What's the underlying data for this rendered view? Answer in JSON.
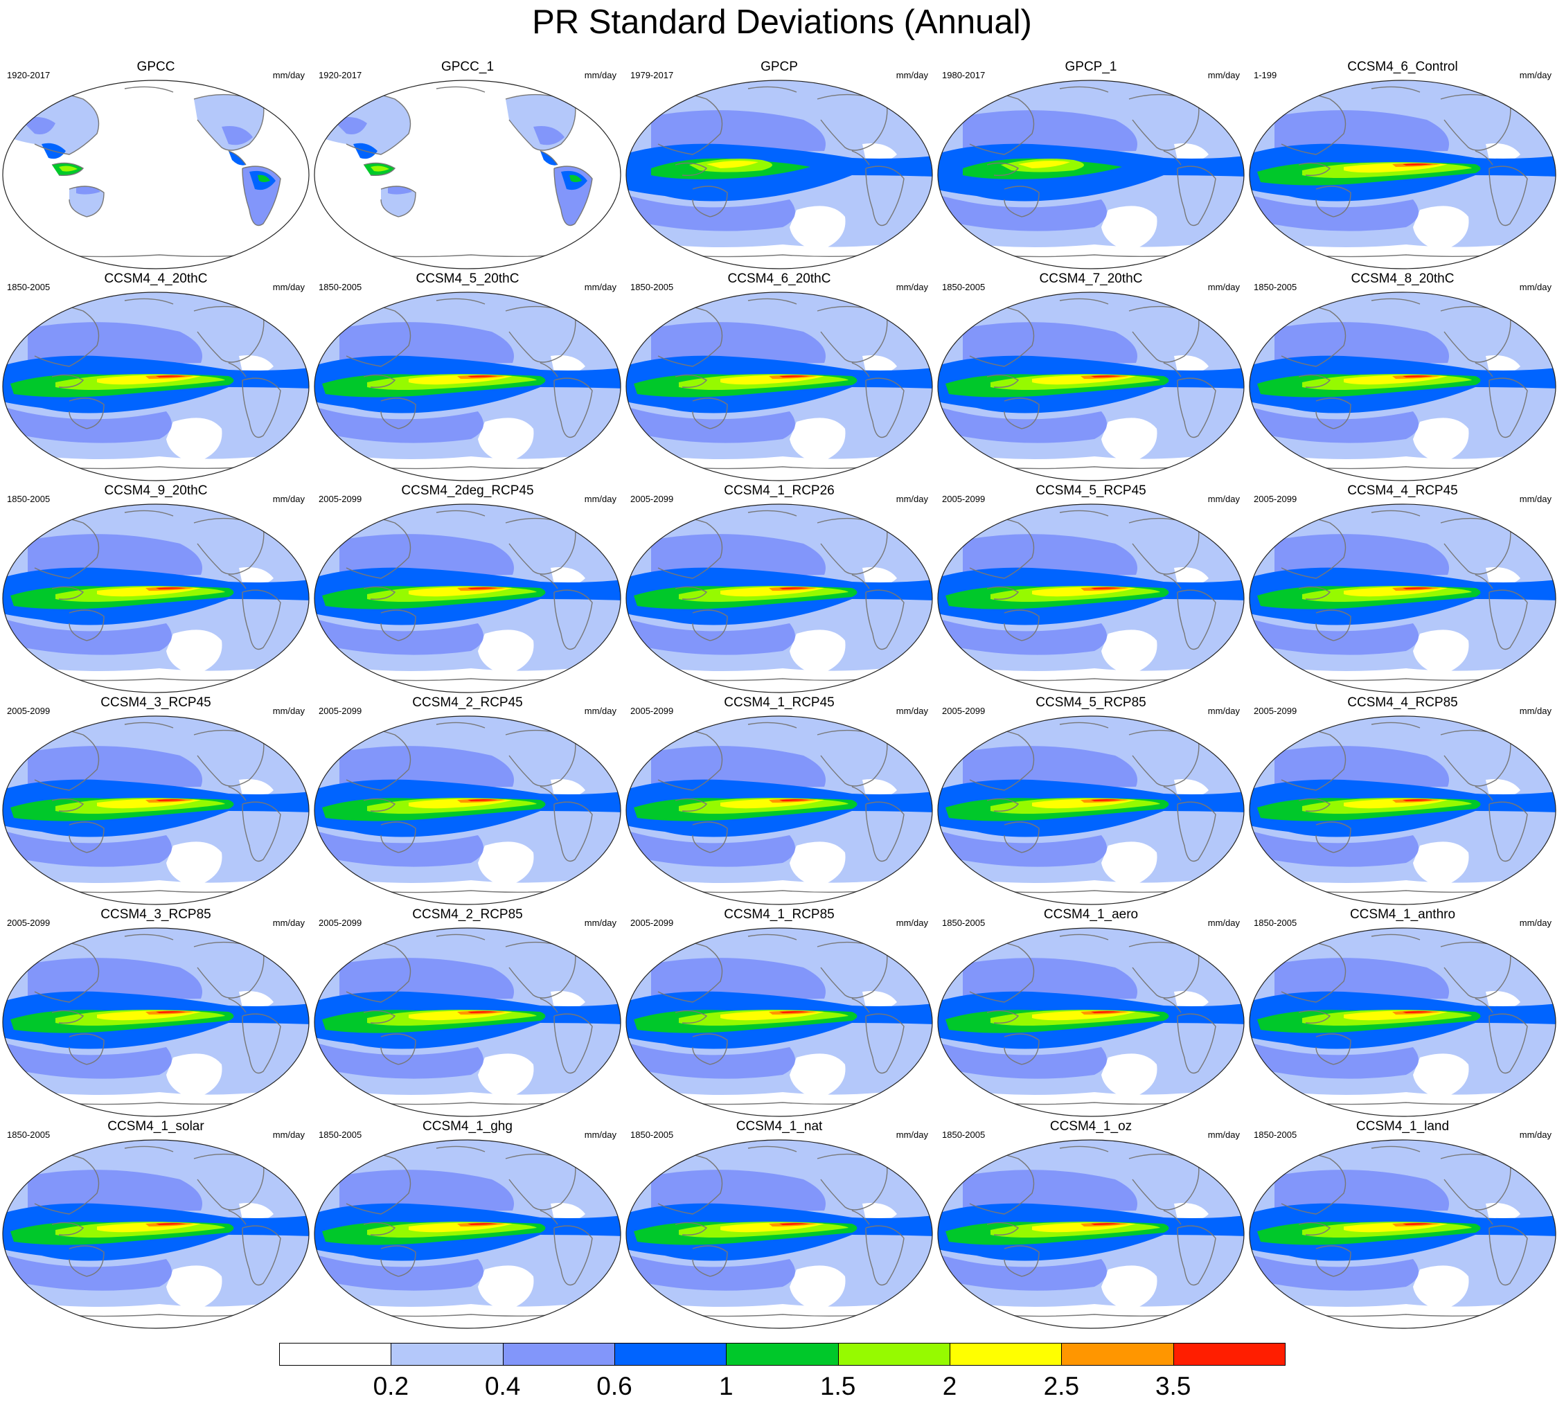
{
  "figure": {
    "title": "PR Standard Deviations (Annual)",
    "projection": "Robinson, Pacific-centered",
    "units": "mm/day"
  },
  "panels": [
    {
      "title": "GPCC",
      "years": "1920-2017",
      "units": "mm/day",
      "variant": "land-only"
    },
    {
      "title": "GPCC_1",
      "years": "1920-2017",
      "units": "mm/day",
      "variant": "land-only"
    },
    {
      "title": "GPCP",
      "years": "1979-2017",
      "units": "mm/day",
      "variant": "obs"
    },
    {
      "title": "GPCP_1",
      "years": "1980-2017",
      "units": "mm/day",
      "variant": "obs"
    },
    {
      "title": "CCSM4_6_Control",
      "years": "1-199",
      "units": "mm/day",
      "variant": "model"
    },
    {
      "title": "CCSM4_4_20thC",
      "years": "1850-2005",
      "units": "mm/day",
      "variant": "model"
    },
    {
      "title": "CCSM4_5_20thC",
      "years": "1850-2005",
      "units": "mm/day",
      "variant": "model"
    },
    {
      "title": "CCSM4_6_20thC",
      "years": "1850-2005",
      "units": "mm/day",
      "variant": "model"
    },
    {
      "title": "CCSM4_7_20thC",
      "years": "1850-2005",
      "units": "mm/day",
      "variant": "model"
    },
    {
      "title": "CCSM4_8_20thC",
      "years": "1850-2005",
      "units": "mm/day",
      "variant": "model"
    },
    {
      "title": "CCSM4_9_20thC",
      "years": "1850-2005",
      "units": "mm/day",
      "variant": "model"
    },
    {
      "title": "CCSM4_2deg_RCP45",
      "years": "2005-2099",
      "units": "mm/day",
      "variant": "model"
    },
    {
      "title": "CCSM4_1_RCP26",
      "years": "2005-2099",
      "units": "mm/day",
      "variant": "model"
    },
    {
      "title": "CCSM4_5_RCP45",
      "years": "2005-2099",
      "units": "mm/day",
      "variant": "model"
    },
    {
      "title": "CCSM4_4_RCP45",
      "years": "2005-2099",
      "units": "mm/day",
      "variant": "model"
    },
    {
      "title": "CCSM4_3_RCP45",
      "years": "2005-2099",
      "units": "mm/day",
      "variant": "model"
    },
    {
      "title": "CCSM4_2_RCP45",
      "years": "2005-2099",
      "units": "mm/day",
      "variant": "model"
    },
    {
      "title": "CCSM4_1_RCP45",
      "years": "2005-2099",
      "units": "mm/day",
      "variant": "model"
    },
    {
      "title": "CCSM4_5_RCP85",
      "years": "2005-2099",
      "units": "mm/day",
      "variant": "model"
    },
    {
      "title": "CCSM4_4_RCP85",
      "years": "2005-2099",
      "units": "mm/day",
      "variant": "model"
    },
    {
      "title": "CCSM4_3_RCP85",
      "years": "2005-2099",
      "units": "mm/day",
      "variant": "model"
    },
    {
      "title": "CCSM4_2_RCP85",
      "years": "2005-2099",
      "units": "mm/day",
      "variant": "model"
    },
    {
      "title": "CCSM4_1_RCP85",
      "years": "2005-2099",
      "units": "mm/day",
      "variant": "model"
    },
    {
      "title": "CCSM4_1_aero",
      "years": "1850-2005",
      "units": "mm/day",
      "variant": "model"
    },
    {
      "title": "CCSM4_1_anthro",
      "years": "1850-2005",
      "units": "mm/day",
      "variant": "model"
    },
    {
      "title": "CCSM4_1_solar",
      "years": "1850-2005",
      "units": "mm/day",
      "variant": "model"
    },
    {
      "title": "CCSM4_1_ghg",
      "years": "1850-2005",
      "units": "mm/day",
      "variant": "model"
    },
    {
      "title": "CCSM4_1_nat",
      "years": "1850-2005",
      "units": "mm/day",
      "variant": "model"
    },
    {
      "title": "CCSM4_1_oz",
      "years": "1850-2005",
      "units": "mm/day",
      "variant": "model"
    },
    {
      "title": "CCSM4_1_land",
      "years": "1850-2005",
      "units": "mm/day",
      "variant": "model"
    }
  ],
  "colorbar": {
    "labels": [
      "0.2",
      "0.4",
      "0.6",
      "1",
      "1.5",
      "2",
      "2.5",
      "3.5"
    ],
    "colors": [
      "#ffffff",
      "#b4c8fa",
      "#8296fa",
      "#0064ff",
      "#00c82a",
      "#96fa00",
      "#ffff00",
      "#ff9600",
      "#ff1e00"
    ]
  }
}
